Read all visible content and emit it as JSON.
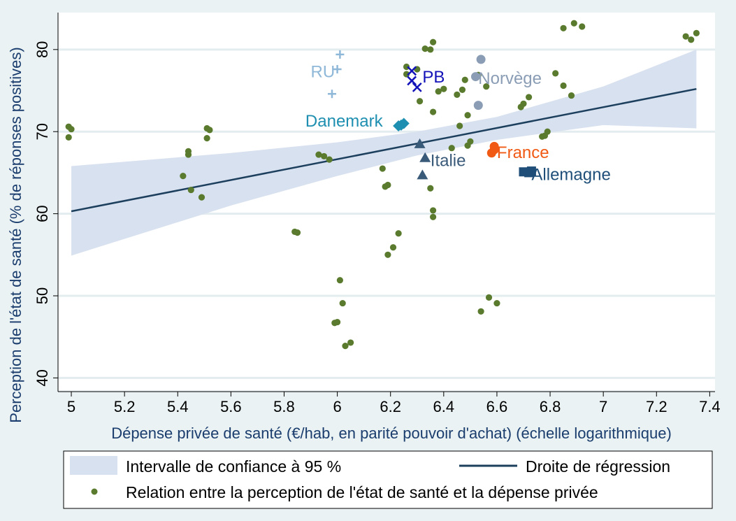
{
  "chart_data": {
    "type": "scatter",
    "xlabel": "Dépense privée de santé (€/hab, en parité pouvoir d'achat) (échelle logarithmique)",
    "ylabel": "Perception de l'état de santé (% de réponses positives)",
    "xlim": [
      4.95,
      7.42
    ],
    "ylim": [
      38.5,
      84.5
    ],
    "x_ticks": [
      "5",
      "5.2",
      "5.4",
      "5.6",
      "5.8",
      "6",
      "6.2",
      "6.4",
      "6.6",
      "6.8",
      "7",
      "7.2",
      "7.4"
    ],
    "x_tick_values": [
      5,
      5.2,
      5.4,
      5.6,
      5.8,
      6,
      6.2,
      6.4,
      6.6,
      6.8,
      7,
      7.2,
      7.4
    ],
    "y_ticks": [
      "40",
      "50",
      "60",
      "70",
      "80"
    ],
    "y_tick_values": [
      40,
      50,
      60,
      70,
      80
    ],
    "grid": true,
    "regression": {
      "x0": 5.0,
      "y0": 60.3,
      "x1": 7.35,
      "y1": 75.2
    },
    "ci_band": {
      "upper": [
        [
          5.0,
          65.8
        ],
        [
          5.6,
          67.4
        ],
        [
          6.0,
          68.7
        ],
        [
          6.3,
          70.0
        ],
        [
          6.6,
          71.8
        ],
        [
          7.0,
          75.5
        ],
        [
          7.35,
          80.0
        ]
      ],
      "lower": [
        [
          5.0,
          54.9
        ],
        [
          5.6,
          61.0
        ],
        [
          6.0,
          64.6
        ],
        [
          6.3,
          67.1
        ],
        [
          6.6,
          69.0
        ],
        [
          7.0,
          70.8
        ],
        [
          7.35,
          70.4
        ]
      ]
    },
    "series": [
      {
        "name": "Relation entre la perception de l'état de santé et la dépense privée",
        "color": "#5a7a2e",
        "points": [
          [
            4.99,
            70.6
          ],
          [
            5.0,
            70.3
          ],
          [
            4.99,
            69.3
          ],
          [
            5.42,
            64.6
          ],
          [
            5.44,
            67.6
          ],
          [
            5.44,
            67.2
          ],
          [
            5.45,
            62.9
          ],
          [
            5.49,
            62.0
          ],
          [
            5.51,
            70.4
          ],
          [
            5.52,
            70.2
          ],
          [
            5.51,
            69.2
          ],
          [
            5.84,
            57.8
          ],
          [
            5.85,
            57.7
          ],
          [
            5.93,
            67.2
          ],
          [
            5.95,
            67.0
          ],
          [
            5.97,
            66.6
          ],
          [
            5.99,
            46.7
          ],
          [
            6.0,
            46.8
          ],
          [
            6.01,
            51.9
          ],
          [
            6.02,
            49.1
          ],
          [
            6.03,
            43.9
          ],
          [
            6.05,
            44.3
          ],
          [
            6.17,
            65.5
          ],
          [
            6.18,
            63.3
          ],
          [
            6.19,
            63.5
          ],
          [
            6.19,
            55.0
          ],
          [
            6.21,
            55.9
          ],
          [
            6.23,
            57.6
          ],
          [
            6.26,
            77.9
          ],
          [
            6.26,
            77.0
          ],
          [
            6.3,
            77.6
          ],
          [
            6.31,
            73.7
          ],
          [
            6.33,
            80.1
          ],
          [
            6.35,
            80.0
          ],
          [
            6.36,
            80.9
          ],
          [
            6.35,
            63.1
          ],
          [
            6.36,
            60.4
          ],
          [
            6.36,
            59.6
          ],
          [
            6.36,
            72.4
          ],
          [
            6.38,
            74.9
          ],
          [
            6.4,
            75.2
          ],
          [
            6.43,
            68.0
          ],
          [
            6.45,
            74.5
          ],
          [
            6.46,
            70.7
          ],
          [
            6.47,
            75.1
          ],
          [
            6.48,
            76.3
          ],
          [
            6.49,
            68.3
          ],
          [
            6.49,
            72.0
          ],
          [
            6.5,
            68.8
          ],
          [
            6.53,
            76.9
          ],
          [
            6.56,
            75.5
          ],
          [
            6.57,
            49.8
          ],
          [
            6.54,
            48.1
          ],
          [
            6.6,
            49.1
          ],
          [
            6.69,
            73.0
          ],
          [
            6.7,
            73.4
          ],
          [
            6.72,
            74.2
          ],
          [
            6.77,
            69.4
          ],
          [
            6.78,
            69.5
          ],
          [
            6.79,
            70.0
          ],
          [
            6.82,
            77.1
          ],
          [
            6.85,
            75.6
          ],
          [
            6.88,
            74.4
          ],
          [
            6.85,
            82.6
          ],
          [
            6.89,
            83.2
          ],
          [
            6.92,
            82.8
          ],
          [
            7.31,
            81.6
          ],
          [
            7.33,
            81.2
          ],
          [
            7.35,
            82.0
          ]
        ]
      }
    ],
    "countries": [
      {
        "label": "RU",
        "marker": "plus",
        "color": "#8fb8d8",
        "points": [
          [
            6.01,
            79.4
          ],
          [
            6.0,
            77.6
          ],
          [
            5.98,
            74.6
          ]
        ],
        "label_pos": [
          5.9,
          76.6
        ]
      },
      {
        "label": "PB",
        "marker": "cross",
        "color": "#1212b8",
        "points": [
          [
            6.28,
            77.4
          ],
          [
            6.28,
            76.2
          ],
          [
            6.3,
            75.4
          ]
        ],
        "label_pos": [
          6.32,
          76.0
        ]
      },
      {
        "label": "Norvège",
        "marker": "circle",
        "color": "#8a9db5",
        "points": [
          [
            6.54,
            78.8
          ],
          [
            6.52,
            76.7
          ],
          [
            6.53,
            73.2
          ]
        ],
        "label_pos": [
          6.53,
          75.8
        ]
      },
      {
        "label": "Danemark",
        "marker": "diamond",
        "color": "#1e8fb0",
        "points": [
          [
            6.23,
            70.7
          ],
          [
            6.24,
            70.8
          ],
          [
            6.25,
            71.0
          ]
        ],
        "label_pos": [
          5.88,
          70.6
        ]
      },
      {
        "label": "Italie",
        "marker": "triangle",
        "color": "#3a5a7a",
        "points": [
          [
            6.31,
            68.5
          ],
          [
            6.33,
            66.8
          ],
          [
            6.32,
            64.7
          ]
        ],
        "label_pos": [
          6.35,
          65.8
        ]
      },
      {
        "label": "France",
        "marker": "circle",
        "color": "#f05a14",
        "points": [
          [
            6.58,
            67.4
          ],
          [
            6.59,
            67.8
          ],
          [
            6.59,
            68.2
          ]
        ],
        "label_pos": [
          6.6,
          66.8
        ]
      },
      {
        "label": "Allemagne",
        "marker": "square",
        "color": "#1f4e79",
        "points": [
          [
            6.7,
            65.1
          ],
          [
            6.72,
            65.0
          ],
          [
            6.73,
            65.2
          ]
        ],
        "label_pos": [
          6.73,
          64.1
        ]
      }
    ]
  },
  "legend": {
    "ci_label": "Intervalle de confiance à 95 %",
    "line_label": "Droite de régression",
    "points_label": "Relation entre la perception de l'état de santé et la dépense privée",
    "ci_color": "#d8e1ef",
    "line_color": "#1d3f5e",
    "point_color": "#5a7a2e"
  }
}
